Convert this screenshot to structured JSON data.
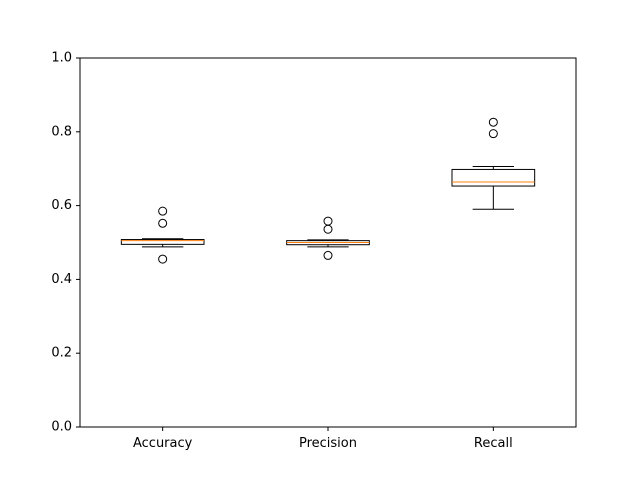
{
  "chart_data": {
    "type": "boxplot",
    "title": "",
    "xlabel": "",
    "ylabel": "",
    "ylim": [
      0.0,
      1.0
    ],
    "yticks": [
      "0.0",
      "0.2",
      "0.4",
      "0.6",
      "0.8",
      "1.0"
    ],
    "grid": false,
    "categories": [
      "Accuracy",
      "Precision",
      "Recall"
    ],
    "boxes": [
      {
        "category": "Accuracy",
        "whisker_low": 0.488,
        "q1": 0.495,
        "median": 0.505,
        "q3": 0.508,
        "whisker_high": 0.51,
        "outliers": [
          0.585,
          0.552,
          0.455
        ]
      },
      {
        "category": "Precision",
        "whisker_low": 0.488,
        "q1": 0.494,
        "median": 0.5,
        "q3": 0.505,
        "whisker_high": 0.507,
        "outliers": [
          0.558,
          0.536,
          0.465
        ]
      },
      {
        "category": "Recall",
        "whisker_low": 0.59,
        "q1": 0.653,
        "median": 0.664,
        "q3": 0.698,
        "whisker_high": 0.706,
        "outliers": [
          0.826,
          0.795
        ]
      }
    ],
    "colors": {
      "box": "#000000",
      "median": "#ff7f0e",
      "axes": "#000000",
      "background": "#ffffff"
    }
  }
}
